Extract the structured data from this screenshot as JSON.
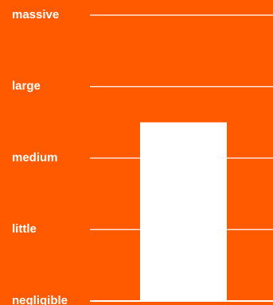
{
  "colors": {
    "background": "#ff5a00",
    "foreground": "#ffffff"
  },
  "chart_data": {
    "type": "bar",
    "categories": [
      ""
    ],
    "values": [
      2.5
    ],
    "y_scale": "ordinal",
    "y_levels": [
      "negligible",
      "little",
      "medium",
      "large",
      "massive"
    ],
    "y_ticks": [
      0,
      1,
      2,
      3,
      4
    ],
    "ylim": [
      0,
      4
    ],
    "title": "",
    "xlabel": "",
    "ylabel": "",
    "grid": true,
    "legend": "none"
  }
}
